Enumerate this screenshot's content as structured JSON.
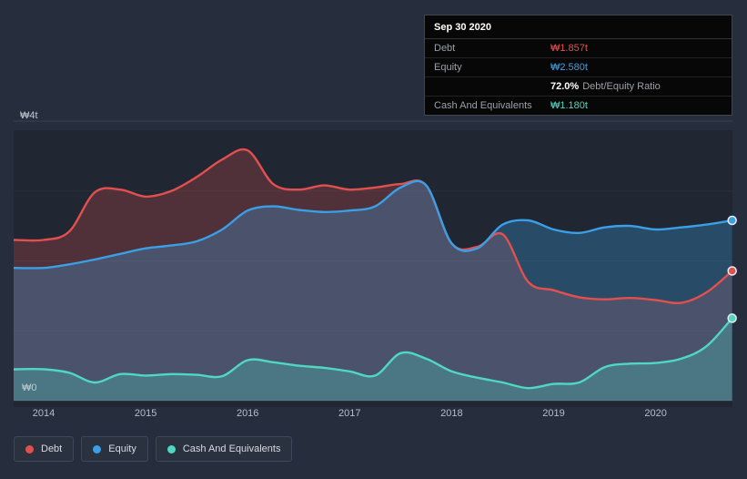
{
  "colors": {
    "background": "#262e3d",
    "debt": "#e2504e",
    "equity": "#3b9fe6",
    "cash": "#50d7c2",
    "axis_text": "#b6bdc9",
    "tooltip_background": "#070707"
  },
  "tooltip": {
    "title": "Sep 30 2020",
    "debt_label": "Debt",
    "debt_value": "₩1.857t",
    "equity_label": "Equity",
    "equity_value": "₩2.580t",
    "ratio_value": "72.0%",
    "ratio_label": "Debt/Equity Ratio",
    "cash_label": "Cash And Equivalents",
    "cash_value": "₩1.180t"
  },
  "y_axis": {
    "top": "₩4t",
    "bottom": "₩0"
  },
  "x_axis": [
    "2014",
    "2015",
    "2016",
    "2017",
    "2018",
    "2019",
    "2020"
  ],
  "legend": [
    {
      "label": "Debt",
      "series": "debt"
    },
    {
      "label": "Equity",
      "series": "equity"
    },
    {
      "label": "Cash And Equivalents",
      "series": "cash"
    }
  ],
  "chart_data": {
    "type": "area",
    "title": "",
    "unit": "₩ trillions (KRW)",
    "ylim": [
      0,
      4
    ],
    "y_tick_labels": [
      "₩0",
      "₩4t"
    ],
    "x_tick_labels": [
      "2014",
      "2015",
      "2016",
      "2017",
      "2018",
      "2019",
      "2020"
    ],
    "grid": true,
    "legend_position": "bottom-left",
    "x": [
      2014,
      2014.25,
      2014.5,
      2014.75,
      2015,
      2015.25,
      2015.5,
      2015.75,
      2016,
      2016.25,
      2016.5,
      2016.75,
      2017,
      2017.25,
      2017.5,
      2017.75,
      2018,
      2018.25,
      2018.5,
      2018.75,
      2019,
      2019.25,
      2019.5,
      2019.75,
      2020,
      2020.25,
      2020.5,
      2020.75
    ],
    "series": [
      {
        "name": "Debt",
        "color": "#e2504e",
        "values": [
          2.3,
          2.42,
          2.98,
          3.02,
          2.92,
          3.0,
          3.2,
          3.45,
          3.58,
          3.1,
          3.02,
          3.08,
          3.02,
          3.05,
          3.1,
          3.08,
          2.25,
          2.2,
          2.38,
          1.7,
          1.58,
          1.48,
          1.45,
          1.47,
          1.44,
          1.4,
          1.55,
          1.857
        ]
      },
      {
        "name": "Equity",
        "color": "#3b9fe6",
        "values": [
          1.9,
          1.95,
          2.02,
          2.1,
          2.18,
          2.22,
          2.28,
          2.45,
          2.72,
          2.78,
          2.73,
          2.7,
          2.72,
          2.78,
          3.05,
          3.08,
          2.25,
          2.18,
          2.52,
          2.58,
          2.45,
          2.4,
          2.48,
          2.5,
          2.45,
          2.48,
          2.52,
          2.58
        ]
      },
      {
        "name": "Cash And Equivalents",
        "color": "#50d7c2",
        "values": [
          0.45,
          0.4,
          0.26,
          0.38,
          0.36,
          0.38,
          0.37,
          0.35,
          0.58,
          0.55,
          0.5,
          0.47,
          0.42,
          0.36,
          0.68,
          0.6,
          0.42,
          0.33,
          0.26,
          0.18,
          0.24,
          0.26,
          0.48,
          0.53,
          0.54,
          0.6,
          0.78,
          1.18
        ]
      }
    ],
    "latest_point": {
      "date": "Sep 30 2020",
      "debt": "₩1.857t",
      "equity": "₩2.580t",
      "debt_equity_ratio": "72.0%",
      "cash_and_equivalents": "₩1.180t"
    }
  }
}
